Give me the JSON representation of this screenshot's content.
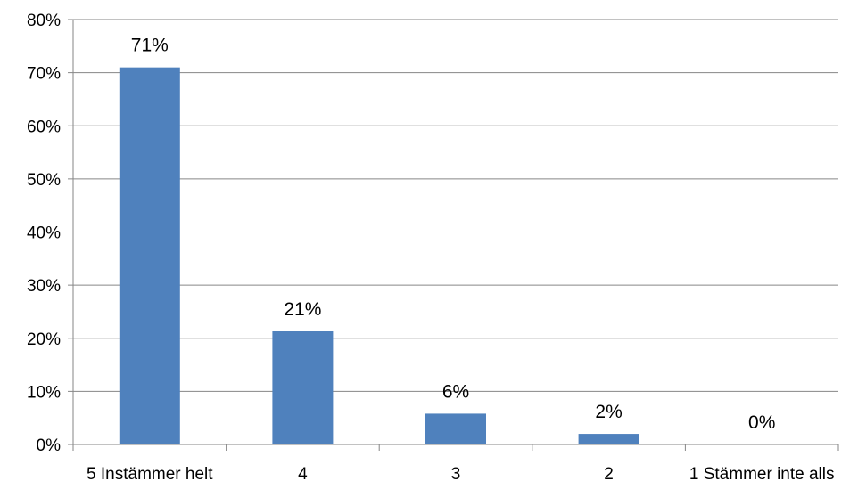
{
  "chart_data": {
    "type": "bar",
    "categories": [
      "5 Instämmer helt",
      "4",
      "3",
      "2",
      "1 Stämmer inte alls"
    ],
    "values": [
      71,
      21.3,
      5.8,
      2,
      0
    ],
    "data_labels": [
      "71%",
      "21%",
      "6%",
      "2%",
      "0%"
    ],
    "title": "",
    "xlabel": "",
    "ylabel": "",
    "ylim": [
      0,
      80
    ],
    "yticks": [
      0,
      10,
      20,
      30,
      40,
      50,
      60,
      70,
      80
    ],
    "ytick_labels": [
      "0%",
      "10%",
      "20%",
      "30%",
      "40%",
      "50%",
      "60%",
      "70%",
      "80%"
    ],
    "grid": true,
    "legend": "none",
    "bar_color": "#4f81bd",
    "grid_color": "#868686"
  }
}
